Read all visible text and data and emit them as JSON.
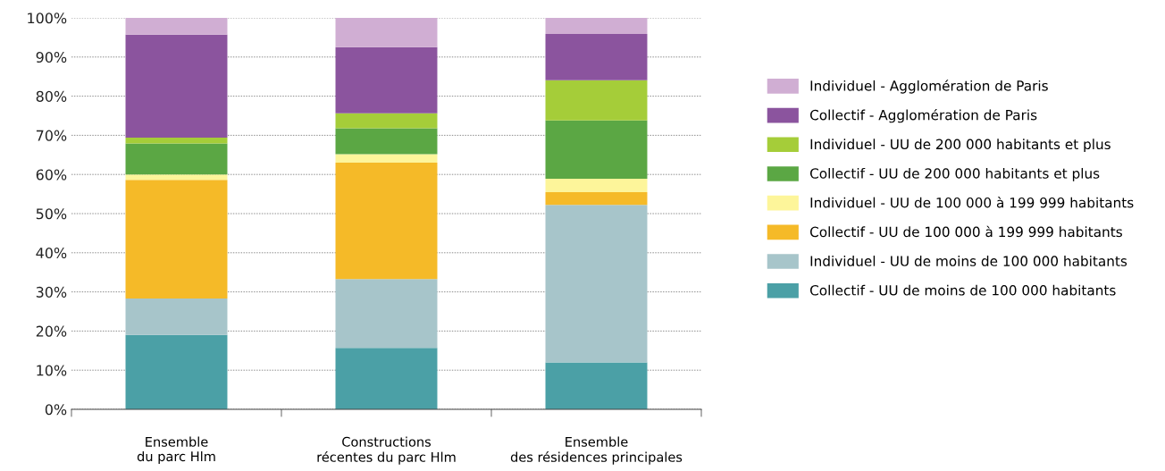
{
  "chart_data": {
    "type": "bar",
    "stacked": true,
    "categories": [
      "Ensemble\ndu parc Hlm",
      "Constructions\nrécentes du parc Hlm",
      "Ensemble\ndes résidences principales"
    ],
    "ylim": [
      0,
      100
    ],
    "yticks": [
      {
        "value": 0,
        "label": "0%"
      },
      {
        "value": 10,
        "label": "10%"
      },
      {
        "value": 20,
        "label": "20%"
      },
      {
        "value": 30,
        "label": "30%"
      },
      {
        "value": 40,
        "label": "40%"
      },
      {
        "value": 50,
        "label": "50%"
      },
      {
        "value": 60,
        "label": "60%"
      },
      {
        "value": 70,
        "label": "70%"
      },
      {
        "value": 80,
        "label": "80%"
      },
      {
        "value": 90,
        "label": "90%"
      },
      {
        "value": 100,
        "label": "100%"
      }
    ],
    "grid": "y",
    "legend": "right",
    "series": [
      {
        "name": "Collectif - UU de moins de 100 000 habitants",
        "color": "#4ba0a6",
        "values": [
          19.0,
          15.7,
          12.0
        ]
      },
      {
        "name": "Individuel - UU de moins de 100 000 habitants",
        "color": "#a7c5ca",
        "values": [
          9.3,
          17.6,
          40.2
        ]
      },
      {
        "name": "Collectif - UU de 100 000 à 199 999 habitants",
        "color": "#f5ba28",
        "values": [
          30.3,
          29.7,
          3.3
        ]
      },
      {
        "name": "Individuel - UU de 100 000 à 199 999 habitants",
        "color": "#fdf59a",
        "values": [
          1.4,
          2.2,
          3.4
        ]
      },
      {
        "name": "Collectif - UU de 200 000 habitants et plus",
        "color": "#5ba744",
        "values": [
          7.9,
          6.6,
          14.9
        ]
      },
      {
        "name": "Individuel - UU de 200 000 habitants et plus",
        "color": "#a5cd39",
        "values": [
          1.5,
          3.8,
          10.3
        ]
      },
      {
        "name": "Collectif - Agglomération de Paris",
        "color": "#8b549e",
        "values": [
          26.3,
          16.9,
          11.8
        ]
      },
      {
        "name": "Individuel - Agglomération de Paris",
        "color": "#d0aed3",
        "values": [
          4.3,
          7.5,
          4.1
        ]
      }
    ]
  }
}
